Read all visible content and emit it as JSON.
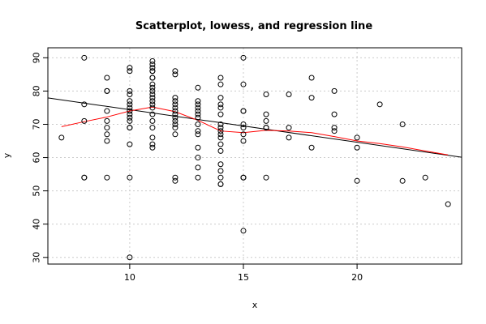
{
  "chart_data": {
    "type": "scatter",
    "title": "Scatterplot, lowess, and regression line",
    "xlabel": "x",
    "ylabel": "y",
    "xlim": [
      6.4,
      24.6
    ],
    "ylim": [
      28,
      93
    ],
    "xticks": [
      10,
      15,
      20
    ],
    "yticks": [
      30,
      40,
      50,
      60,
      70,
      80,
      90
    ],
    "grid": true,
    "colors": {
      "points": "#000000",
      "regression": "#000000",
      "lowess": "#ff0000",
      "grid": "#cccccc"
    },
    "points": [
      [
        7,
        66
      ],
      [
        8,
        90
      ],
      [
        8,
        76
      ],
      [
        8,
        71
      ],
      [
        8,
        54
      ],
      [
        8,
        54
      ],
      [
        9,
        84
      ],
      [
        9,
        80
      ],
      [
        9,
        80
      ],
      [
        9,
        74
      ],
      [
        9,
        71
      ],
      [
        9,
        69
      ],
      [
        9,
        67
      ],
      [
        9,
        65
      ],
      [
        9,
        54
      ],
      [
        10,
        87
      ],
      [
        10,
        86
      ],
      [
        10,
        80
      ],
      [
        10,
        79
      ],
      [
        10,
        77
      ],
      [
        10,
        76
      ],
      [
        10,
        75
      ],
      [
        10,
        74
      ],
      [
        10,
        73
      ],
      [
        10,
        72
      ],
      [
        10,
        71
      ],
      [
        10,
        69
      ],
      [
        10,
        69
      ],
      [
        10,
        64
      ],
      [
        10,
        54
      ],
      [
        10,
        30
      ],
      [
        11,
        89
      ],
      [
        11,
        88
      ],
      [
        11,
        87
      ],
      [
        11,
        86
      ],
      [
        11,
        86
      ],
      [
        11,
        84
      ],
      [
        11,
        84
      ],
      [
        11,
        82
      ],
      [
        11,
        81
      ],
      [
        11,
        80
      ],
      [
        11,
        79
      ],
      [
        11,
        78
      ],
      [
        11,
        77
      ],
      [
        11,
        76
      ],
      [
        11,
        75
      ],
      [
        11,
        73
      ],
      [
        11,
        71
      ],
      [
        11,
        69
      ],
      [
        11,
        66
      ],
      [
        11,
        64
      ],
      [
        11,
        63
      ],
      [
        12,
        86
      ],
      [
        12,
        85
      ],
      [
        12,
        78
      ],
      [
        12,
        77
      ],
      [
        12,
        76
      ],
      [
        12,
        75
      ],
      [
        12,
        74
      ],
      [
        12,
        73
      ],
      [
        12,
        72
      ],
      [
        12,
        71
      ],
      [
        12,
        70
      ],
      [
        12,
        69
      ],
      [
        12,
        67
      ],
      [
        12,
        54
      ],
      [
        12,
        53
      ],
      [
        13,
        81
      ],
      [
        13,
        77
      ],
      [
        13,
        76
      ],
      [
        13,
        75
      ],
      [
        13,
        74
      ],
      [
        13,
        73
      ],
      [
        13,
        72
      ],
      [
        13,
        70
      ],
      [
        13,
        68
      ],
      [
        13,
        67
      ],
      [
        13,
        63
      ],
      [
        13,
        60
      ],
      [
        13,
        57
      ],
      [
        13,
        54
      ],
      [
        14,
        84
      ],
      [
        14,
        82
      ],
      [
        14,
        78
      ],
      [
        14,
        76
      ],
      [
        14,
        75
      ],
      [
        14,
        73
      ],
      [
        14,
        70
      ],
      [
        14,
        69
      ],
      [
        14,
        68
      ],
      [
        14,
        67
      ],
      [
        14,
        66
      ],
      [
        14,
        64
      ],
      [
        14,
        62
      ],
      [
        14,
        58
      ],
      [
        14,
        56
      ],
      [
        14,
        54
      ],
      [
        14,
        52
      ],
      [
        14,
        52
      ],
      [
        15,
        90
      ],
      [
        15,
        82
      ],
      [
        15,
        74
      ],
      [
        15,
        74
      ],
      [
        15,
        70
      ],
      [
        15,
        69
      ],
      [
        15,
        67
      ],
      [
        15,
        65
      ],
      [
        15,
        54
      ],
      [
        15,
        54
      ],
      [
        15,
        54
      ],
      [
        15,
        38
      ],
      [
        16,
        79
      ],
      [
        16,
        73
      ],
      [
        16,
        71
      ],
      [
        16,
        69
      ],
      [
        16,
        69
      ],
      [
        16,
        54
      ],
      [
        17,
        79
      ],
      [
        17,
        69
      ],
      [
        17,
        66
      ],
      [
        18,
        84
      ],
      [
        18,
        78
      ],
      [
        18,
        63
      ],
      [
        19,
        80
      ],
      [
        19,
        73
      ],
      [
        19,
        69
      ],
      [
        19,
        68
      ],
      [
        20,
        66
      ],
      [
        20,
        63
      ],
      [
        20,
        53
      ],
      [
        21,
        76
      ],
      [
        22,
        70
      ],
      [
        22,
        53
      ],
      [
        23,
        54
      ],
      [
        24,
        46
      ]
    ],
    "regression": {
      "intercept": 84.2,
      "slope": -0.98
    },
    "lowess": [
      [
        7,
        69.3
      ],
      [
        8,
        70.8
      ],
      [
        9,
        72.2
      ],
      [
        10,
        74.0
      ],
      [
        11,
        75.2
      ],
      [
        12,
        73.8
      ],
      [
        13,
        71.2
      ],
      [
        14,
        68.0
      ],
      [
        15,
        67.5
      ],
      [
        16,
        68.2
      ],
      [
        17,
        68.0
      ],
      [
        18,
        67.5
      ],
      [
        19,
        66.3
      ],
      [
        20,
        65.0
      ],
      [
        21,
        64.2
      ],
      [
        22,
        63.2
      ],
      [
        23,
        62.0
      ],
      [
        24,
        60.8
      ]
    ]
  }
}
